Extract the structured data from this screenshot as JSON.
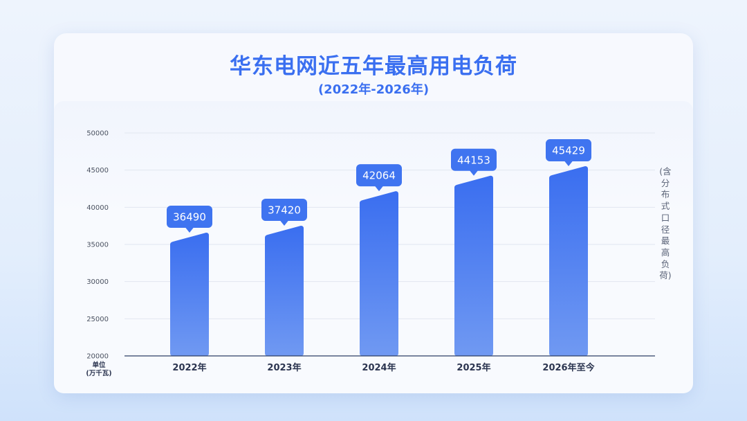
{
  "chart_data": {
    "type": "bar",
    "title": "华东电网近五年最高用电负荷",
    "subtitle": "(2022年-2026年)",
    "categories": [
      "2022年",
      "2023年",
      "2024年",
      "2025年",
      "2026年至今"
    ],
    "values": [
      36490,
      37420,
      42064,
      44153,
      45429
    ],
    "ylim": [
      20000,
      50000
    ],
    "yticks": [
      20000,
      25000,
      30000,
      35000,
      40000,
      45000,
      50000
    ],
    "ylabel": "单位\n(万千瓦)",
    "side_label": "(含分布式口径最高负荷)",
    "grid": true,
    "colors": {
      "bar_top": "#3a6ef0",
      "bar_bottom": "#7099f2",
      "label_bg": "#3f74f0",
      "axis": "#2c3e66"
    }
  }
}
